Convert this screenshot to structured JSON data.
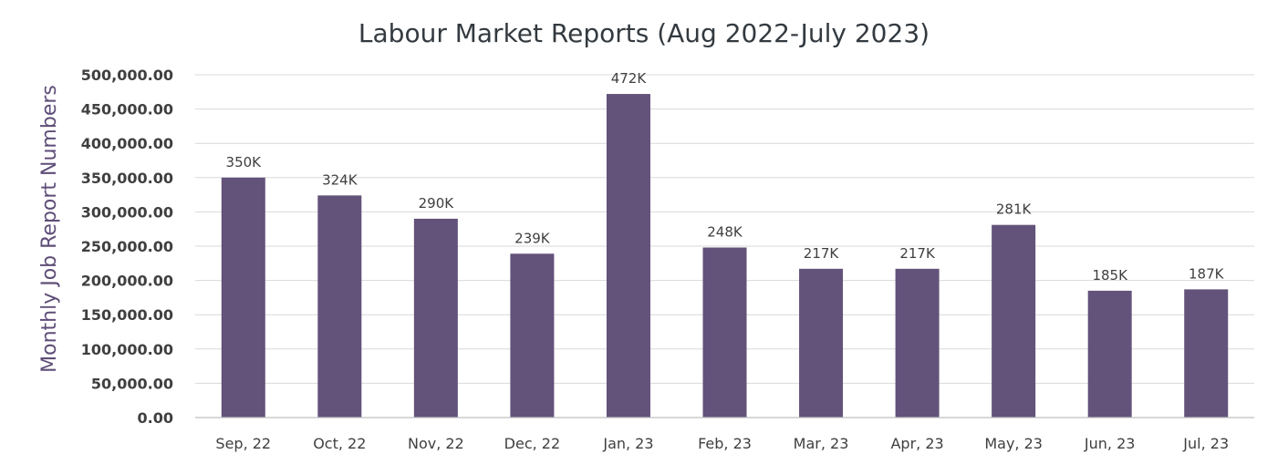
{
  "chart_data": {
    "type": "bar",
    "title": "Labour Market Reports (Aug 2022-July 2023)",
    "xlabel": "",
    "ylabel": "Monthly Job Report Numbers",
    "ylim": [
      0,
      500000
    ],
    "yticks": [
      0,
      50000,
      100000,
      150000,
      200000,
      250000,
      300000,
      350000,
      400000,
      450000,
      500000
    ],
    "ytick_labels": [
      "0.00",
      "50,000.00",
      "100,000.00",
      "150,000.00",
      "200,000.00",
      "250,000.00",
      "300,000.00",
      "350,000.00",
      "400,000.00",
      "450,000.00",
      "500,000.00"
    ],
    "categories": [
      "Sep, 22",
      "Oct, 22",
      "Nov, 22",
      "Dec, 22",
      "Jan, 23",
      "Feb, 23",
      "Mar, 23",
      "Apr, 23",
      "May, 23",
      "Jun, 23",
      "Jul, 23"
    ],
    "values": [
      350000,
      324000,
      290000,
      239000,
      472000,
      248000,
      217000,
      217000,
      281000,
      185000,
      187000
    ],
    "data_labels": [
      "350K",
      "324K",
      "290K",
      "239K",
      "472K",
      "248K",
      "217K",
      "217K",
      "281K",
      "185K",
      "187K"
    ],
    "bar_color": "#63527a",
    "grid": true,
    "legend": "none"
  }
}
